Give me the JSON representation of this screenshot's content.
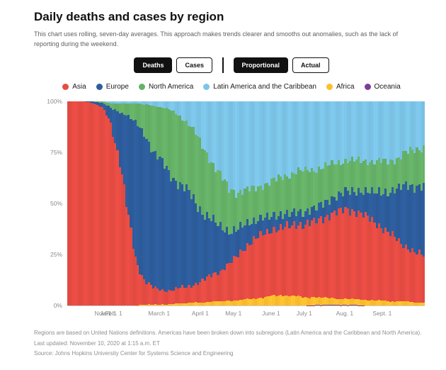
{
  "page": {
    "title": "Daily deaths and cases by region",
    "subtitle": "This chart uses rolling, seven-day averages. This approach makes trends clearer and smooths out anomalies, such as the lack of reporting during the weekend.",
    "footnote_regions": "Regions are based on United Nations definitions. Americas have been broken down into subregions (Latin America and the Caribbean and North America).",
    "footnote_updated": "Last updated: November 10, 2020 at 1:15 a.m. ET",
    "footnote_source": "Source: Johns Hopkins University Center for Systems Science and Engineering"
  },
  "controls": {
    "metric": [
      {
        "label": "Deaths",
        "active": true
      },
      {
        "label": "Cases",
        "active": false
      }
    ],
    "mode": [
      {
        "label": "Proportional",
        "active": true
      },
      {
        "label": "Actual",
        "active": false
      }
    ]
  },
  "chart_data": {
    "type": "area",
    "variant": "100%-stacked-daily-bars",
    "proportional": true,
    "unit": "%",
    "ylim": [
      0,
      100
    ],
    "legend_position": "top",
    "y_ticks": [
      {
        "label": "0%",
        "value": 0
      },
      {
        "label": "25%",
        "value": 25
      },
      {
        "label": "50%",
        "value": 50
      },
      {
        "label": "75%",
        "value": 75
      },
      {
        "label": "100%",
        "value": 100
      }
    ],
    "x_ticks": [
      {
        "label": "Nov. 1",
        "pos": 0.1
      },
      {
        "label": "Jan. 1",
        "pos": 0.115
      },
      {
        "label": "Feb. 1",
        "pos": 0.13
      },
      {
        "label": "March 1",
        "pos": 0.257
      },
      {
        "label": "April 1",
        "pos": 0.372
      },
      {
        "label": "May 1",
        "pos": 0.465
      },
      {
        "label": "June 1",
        "pos": 0.57
      },
      {
        "label": "July 1",
        "pos": 0.663
      },
      {
        "label": "Aug. 1",
        "pos": 0.776
      },
      {
        "label": "Sept. 1",
        "pos": 0.881
      }
    ],
    "stack_order": [
      "Oceania",
      "Africa",
      "Asia",
      "Europe",
      "North America",
      "Latin America and the Caribbean"
    ],
    "series": [
      {
        "name": "Asia",
        "color": "#e74c43",
        "values": [
          100,
          100,
          100,
          99,
          97,
          90,
          72,
          45,
          22,
          12,
          8,
          7,
          7,
          7.5,
          8,
          9,
          11,
          13,
          15,
          18,
          22,
          26,
          29,
          31,
          32,
          33,
          34,
          35,
          36,
          37,
          39,
          41,
          43,
          44,
          43,
          41,
          39,
          36,
          33,
          30,
          27,
          24,
          23
        ]
      },
      {
        "name": "Europe",
        "color": "#2d5d9d",
        "values": [
          0,
          0,
          0,
          1,
          2,
          7,
          23,
          48,
          67,
          72,
          67,
          62,
          57,
          52,
          47,
          40,
          33,
          27,
          21,
          16,
          13,
          11,
          9,
          8,
          7,
          6.5,
          6,
          6,
          6,
          6.5,
          7,
          7.5,
          8,
          9,
          10,
          12,
          14,
          17,
          21,
          25,
          30,
          33,
          34
        ]
      },
      {
        "name": "North America",
        "color": "#66b267",
        "values": [
          0,
          0,
          0,
          0,
          1,
          2,
          4,
          6,
          10,
          14,
          22,
          27,
          31,
          33,
          34,
          34,
          32,
          28,
          25,
          21,
          18,
          16,
          16,
          16,
          17,
          18,
          19,
          20,
          20,
          19,
          18,
          17,
          16,
          15,
          15,
          15,
          15,
          15,
          15,
          15,
          16,
          18,
          19
        ]
      },
      {
        "name": "Latin America and the Caribbean",
        "color": "#7cc5e8",
        "values": [
          0,
          0,
          0,
          0,
          0,
          1,
          1,
          1,
          1,
          1.5,
          2,
          3,
          4,
          6.5,
          10,
          15.5,
          22.5,
          30,
          37,
          42.5,
          44.5,
          44,
          42.5,
          41,
          39.5,
          37.5,
          36,
          34.5,
          34,
          33.5,
          32.5,
          31,
          30,
          29,
          29,
          29,
          29.5,
          29.5,
          29,
          28,
          25,
          23.5,
          22.5
        ]
      },
      {
        "name": "Africa",
        "color": "#fcbf2d",
        "values": [
          0,
          0,
          0,
          0,
          0,
          0,
          0,
          0,
          0,
          0.5,
          0.5,
          0.5,
          0.5,
          1,
          1,
          1.5,
          1.5,
          2,
          2,
          2.5,
          2.5,
          3,
          3.5,
          4,
          4.5,
          5,
          5,
          4.5,
          4,
          4,
          3.5,
          3.5,
          3,
          3,
          3,
          3,
          2.5,
          2.5,
          2,
          2,
          2,
          1.5,
          1.5
        ]
      },
      {
        "name": "Oceania",
        "color": "#7b3f98",
        "values": [
          0,
          0,
          0,
          0,
          0,
          0,
          0,
          0,
          0,
          0,
          0,
          0,
          0,
          0,
          0,
          0,
          0,
          0,
          0,
          0,
          0,
          0,
          0,
          0,
          0,
          0,
          0,
          0,
          0,
          0.2,
          0.2,
          0.2,
          0.2,
          0.2,
          0.2,
          0,
          0,
          0,
          0,
          0,
          0,
          0,
          0
        ]
      }
    ]
  }
}
